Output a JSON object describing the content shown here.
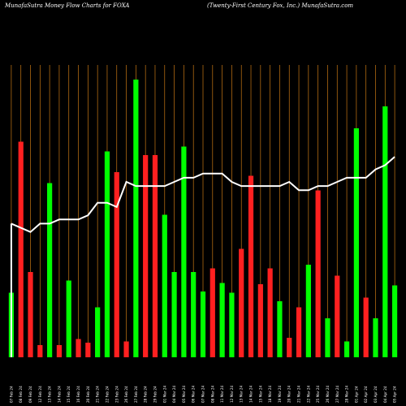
{
  "header": {
    "left": "MunafaSutra  Money Flow  Charts for FOXA",
    "right": "(Twenty-First Century Fox, Inc.) MunafaSutra.com"
  },
  "chart_data": {
    "type": "bar",
    "title": "Money Flow Charts for FOXA",
    "colors": {
      "up": "#00ff00",
      "down": "#ff2020",
      "grid": "#c87814",
      "line": "#ffffff",
      "background": "#000000"
    },
    "categories": [
      "07 Feb 2024",
      "08 Feb 2024",
      "09 Feb 2024",
      "12 Feb 2024",
      "13 Feb 2024",
      "14 Feb 2024",
      "15 Feb 2024",
      "16 Feb 2024",
      "20 Feb 2024",
      "21 Feb 2024",
      "22 Feb 2024",
      "23 Feb 2024",
      "26 Feb 2024",
      "27 Feb 2024",
      "28 Feb 2024",
      "29 Feb 2024",
      "01 Mar 2024",
      "04 Mar 2024",
      "05 Mar 2024",
      "06 Mar 2024",
      "07 Mar 2024",
      "08 Mar 2024",
      "11 Mar 2024",
      "12 Mar 2024",
      "13 Mar 2024",
      "14 Mar 2024",
      "15 Mar 2024",
      "18 Mar 2024",
      "19 Mar 2024",
      "20 Mar 2024",
      "21 Mar 2024",
      "22 Mar 2024",
      "25 Mar 2024",
      "26 Mar 2024",
      "27 Mar 2024",
      "28 Mar 2024",
      "01 Apr 2024",
      "02 Apr 2024",
      "03 Apr 2024",
      "04 Apr 2024",
      "05 Apr 2024"
    ],
    "values": [
      53,
      177,
      70,
      10,
      143,
      10,
      63,
      15,
      12,
      41,
      169,
      152,
      13,
      228,
      166,
      166,
      117,
      70,
      173,
      70,
      54,
      73,
      61,
      53,
      89,
      149,
      60,
      73,
      46,
      16,
      41,
      76,
      137,
      32,
      67,
      13,
      188,
      49,
      32,
      206,
      59
    ],
    "directions": [
      "up",
      "down",
      "down",
      "down",
      "up",
      "down",
      "up",
      "down",
      "down",
      "up",
      "up",
      "down",
      "down",
      "up",
      "down",
      "down",
      "up",
      "up",
      "up",
      "up",
      "up",
      "down",
      "up",
      "up",
      "down",
      "down",
      "down",
      "down",
      "up",
      "down",
      "down",
      "up",
      "down",
      "up",
      "down",
      "up",
      "up",
      "down",
      "up",
      "up",
      "up"
    ],
    "x_tick_labels": [
      "07 Feb 24",
      "08 Feb 24",
      "09 Feb 24",
      "12 Feb 24",
      "13 Feb 24",
      "14 Feb 24",
      "15 Feb 24",
      "16 Feb 24",
      "20 Feb 24",
      "21 Feb 24",
      "22 Feb 24",
      "23 Feb 24",
      "26 Feb 24",
      "27 Feb 24",
      "28 Feb 24",
      "29 Feb 24",
      "01 Mar 24",
      "04 Mar 24",
      "05 Mar 24",
      "06 Mar 24",
      "07 Mar 24",
      "08 Mar 24",
      "11 Mar 24",
      "12 Mar 24",
      "13 Mar 24",
      "14 Mar 24",
      "15 Mar 24",
      "18 Mar 24",
      "19 Mar 24",
      "20 Mar 24",
      "21 Mar 24",
      "22 Mar 24",
      "25 Mar 24",
      "26 Mar 24",
      "27 Mar 24",
      "28 Mar 24",
      "01 Apr 24",
      "02 Apr 24",
      "03 Apr 24",
      "04 Apr 24",
      "05 Apr 24"
    ],
    "price_line": [
      29.2,
      29.1,
      29.0,
      29.2,
      29.2,
      29.3,
      29.3,
      29.3,
      29.4,
      29.7,
      29.7,
      29.6,
      30.2,
      30.1,
      30.1,
      30.1,
      30.1,
      30.2,
      30.3,
      30.3,
      30.4,
      30.4,
      30.4,
      30.2,
      30.1,
      30.1,
      30.1,
      30.1,
      30.1,
      30.2,
      30.0,
      30.0,
      30.1,
      30.1,
      30.2,
      30.3,
      30.3,
      30.3,
      30.5,
      30.6,
      30.8
    ],
    "ylim": [
      0,
      240
    ],
    "price_ylim": [
      26.0,
      33.0
    ],
    "grid": true
  }
}
